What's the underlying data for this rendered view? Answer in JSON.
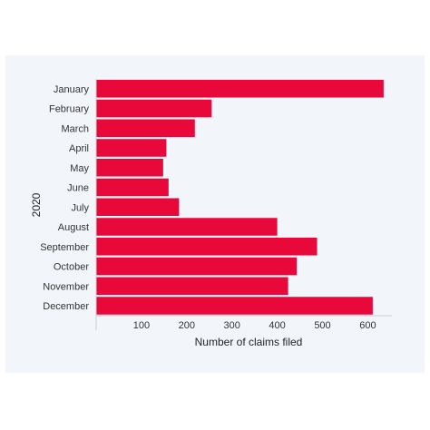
{
  "chart_data": {
    "type": "bar",
    "orientation": "horizontal",
    "categories": [
      "January",
      "February",
      "March",
      "April",
      "May",
      "June",
      "July",
      "August",
      "September",
      "October",
      "November",
      "December"
    ],
    "values": [
      635,
      255,
      218,
      155,
      148,
      160,
      183,
      400,
      488,
      443,
      424,
      611
    ],
    "xlabel": "Number of claims filed",
    "ylabel": "2020",
    "xlim": [
      0,
      650
    ],
    "xticks": [
      100,
      200,
      300,
      400,
      500,
      600
    ],
    "grid": false,
    "bar_color": "#e8093a",
    "panel_color": "#f2f6fb"
  }
}
